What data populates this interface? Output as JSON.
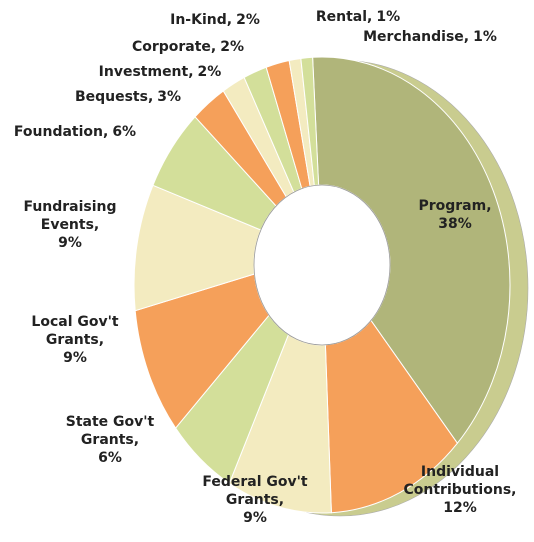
{
  "chart_data": {
    "type": "donut",
    "categories": [
      "Program,",
      "Individual Contributions,",
      "Federal Gov't Grants,",
      "State Gov't Grants,",
      "Local Gov't Grants,",
      "Fundraising Events,",
      "Foundation,",
      "Bequests,",
      "Investment,",
      "Corporate,",
      "In-Kind,",
      "Rental,",
      "Merchandise,"
    ],
    "values": [
      38,
      12,
      9,
      6,
      9,
      9,
      6,
      3,
      2,
      2,
      2,
      1,
      1
    ],
    "value_labels": [
      "38%",
      "12%",
      "9%",
      "6%",
      "9%",
      "9%",
      "6%",
      "3%",
      "2%",
      "2%",
      "2%",
      "1%",
      "1%"
    ],
    "colors": [
      "#b0b57a",
      "#f5a05a",
      "#f3ebc0",
      "#d3df9a",
      "#f5a05a",
      "#f3ebc0",
      "#d3df9a",
      "#f5a05a",
      "#f3ebc0",
      "#d3df9a",
      "#f5a05a",
      "#f3ebc0",
      "#d3df9a"
    ]
  }
}
